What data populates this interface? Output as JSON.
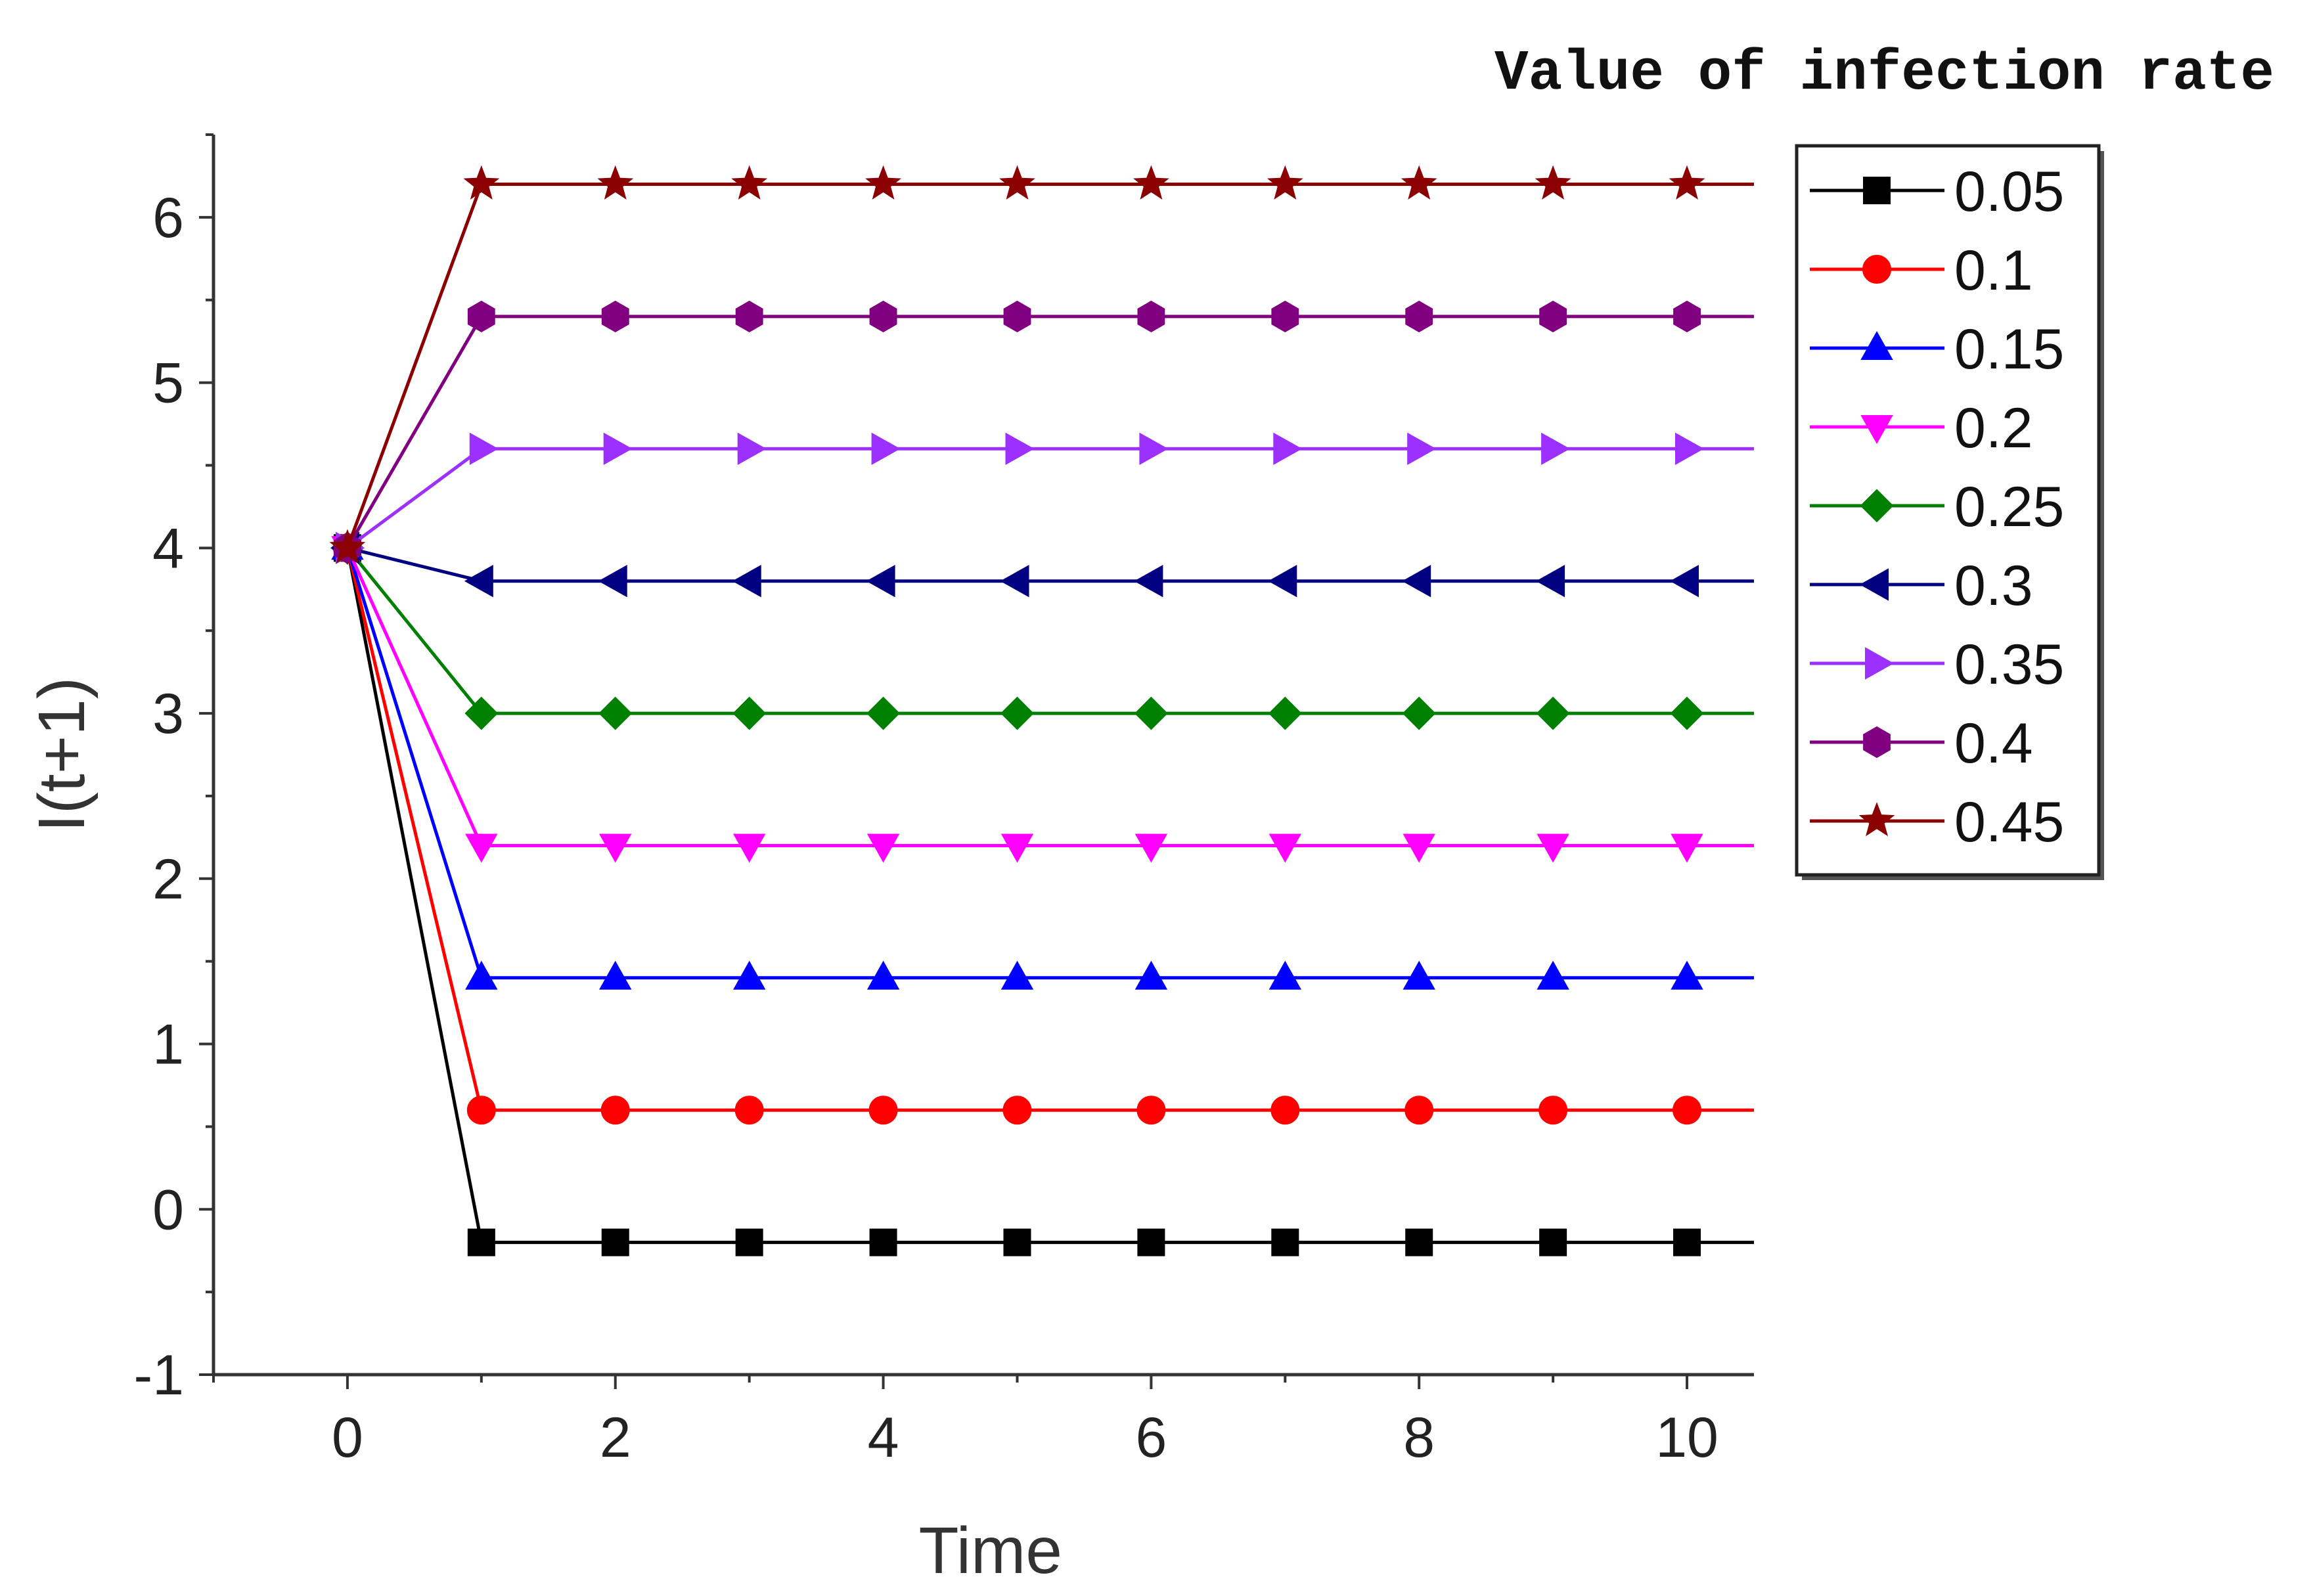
{
  "chart_data": {
    "type": "line",
    "title": "",
    "xlabel": "Time",
    "ylabel": "I(t+1)",
    "legend_title": "Value of infection rate",
    "legend_position": "right",
    "xlim": [
      -1,
      10.5
    ],
    "ylim": [
      -1,
      6.5
    ],
    "x_ticks": [
      0,
      2,
      4,
      6,
      8,
      10
    ],
    "y_ticks": [
      -1,
      0,
      1,
      2,
      3,
      4,
      5,
      6
    ],
    "x": [
      0,
      1,
      2,
      3,
      4,
      5,
      6,
      7,
      8,
      9,
      10
    ],
    "grid": false,
    "series": [
      {
        "name": "0.05",
        "marker": "square",
        "color": "#000000",
        "values": [
          4,
          -0.2,
          -0.2,
          -0.2,
          -0.2,
          -0.2,
          -0.2,
          -0.2,
          -0.2,
          -0.2,
          -0.2
        ]
      },
      {
        "name": "0.1",
        "marker": "circle",
        "color": "#ff0000",
        "values": [
          4,
          0.6,
          0.6,
          0.6,
          0.6,
          0.6,
          0.6,
          0.6,
          0.6,
          0.6,
          0.6
        ]
      },
      {
        "name": "0.15",
        "marker": "triangle-up",
        "color": "#0000ff",
        "values": [
          4,
          1.4,
          1.4,
          1.4,
          1.4,
          1.4,
          1.4,
          1.4,
          1.4,
          1.4,
          1.4
        ]
      },
      {
        "name": "0.2",
        "marker": "triangle-down",
        "color": "#ff00ff",
        "values": [
          4,
          2.2,
          2.2,
          2.2,
          2.2,
          2.2,
          2.2,
          2.2,
          2.2,
          2.2,
          2.2
        ]
      },
      {
        "name": "0.25",
        "marker": "diamond",
        "color": "#008000",
        "values": [
          4,
          3.0,
          3.0,
          3.0,
          3.0,
          3.0,
          3.0,
          3.0,
          3.0,
          3.0,
          3.0
        ]
      },
      {
        "name": "0.3",
        "marker": "triangle-left",
        "color": "#000080",
        "values": [
          4,
          3.8,
          3.8,
          3.8,
          3.8,
          3.8,
          3.8,
          3.8,
          3.8,
          3.8,
          3.8
        ]
      },
      {
        "name": "0.35",
        "marker": "triangle-right",
        "color": "#9b30ff",
        "values": [
          4,
          4.6,
          4.6,
          4.6,
          4.6,
          4.6,
          4.6,
          4.6,
          4.6,
          4.6,
          4.6
        ]
      },
      {
        "name": "0.4",
        "marker": "hexagon",
        "color": "#800080",
        "values": [
          4,
          5.4,
          5.4,
          5.4,
          5.4,
          5.4,
          5.4,
          5.4,
          5.4,
          5.4,
          5.4
        ]
      },
      {
        "name": "0.45",
        "marker": "star",
        "color": "#8b0000",
        "values": [
          4,
          6.2,
          6.2,
          6.2,
          6.2,
          6.2,
          6.2,
          6.2,
          6.2,
          6.2,
          6.2
        ]
      }
    ]
  }
}
